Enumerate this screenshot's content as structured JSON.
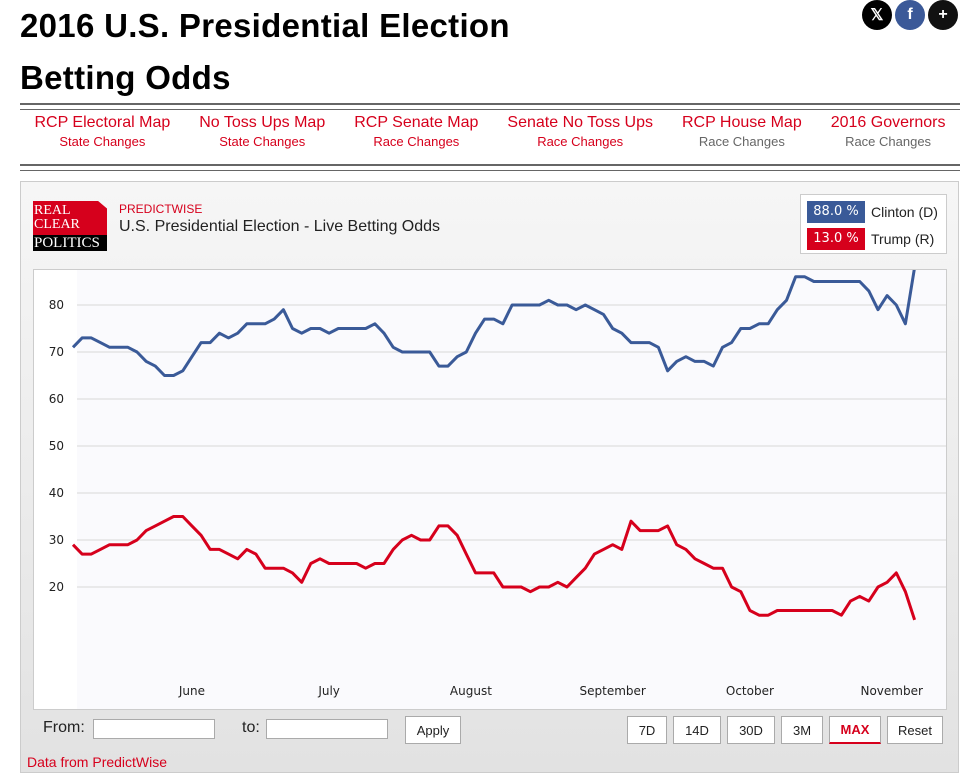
{
  "page": {
    "title_line1": "2016 U.S. Presidential Election",
    "title_line2": "Betting Odds",
    "social": [
      {
        "name": "x-icon",
        "glyph": "𝕏"
      },
      {
        "name": "facebook-icon",
        "glyph": "f"
      },
      {
        "name": "plus-icon",
        "glyph": "+"
      }
    ]
  },
  "nav": [
    {
      "main": "RCP Electoral Map",
      "sub": "State Changes",
      "sub_gray": false
    },
    {
      "main": "No Toss Ups Map",
      "sub": "State Changes",
      "sub_gray": false
    },
    {
      "main": "RCP Senate Map",
      "sub": "Race Changes",
      "sub_gray": false
    },
    {
      "main": "Senate No Toss Ups",
      "sub": "Race Changes",
      "sub_gray": false
    },
    {
      "main": "RCP House Map",
      "sub": "Race Changes",
      "sub_gray": true
    },
    {
      "main": "2016 Governors",
      "sub": "Race Changes",
      "sub_gray": true
    }
  ],
  "widget": {
    "logo": {
      "line1": "REAL",
      "line2": "CLEAR",
      "line3": "POLITICS"
    },
    "source_tag": "PREDICTWISE",
    "title": "U.S. Presidential Election - Live Betting Odds",
    "legend": [
      {
        "value": "88.0 %",
        "name": "Clinton (D)",
        "color": "#3a5a98"
      },
      {
        "value": "13.0 %",
        "name": "Trump (R)",
        "color": "#d6001c"
      }
    ],
    "controls": {
      "from_label": "From:",
      "to_label": "to:",
      "from_value": "",
      "to_value": "",
      "apply": "Apply",
      "ranges": [
        "7D",
        "14D",
        "30D",
        "3M",
        "MAX",
        "Reset"
      ],
      "active_range": "MAX"
    },
    "footer": "Data from PredictWise"
  },
  "chart_data": {
    "type": "line",
    "title": "U.S. Presidential Election - Live Betting Odds",
    "xlabel": "",
    "ylabel": "",
    "ylim": [
      0,
      90
    ],
    "xlim_day": [
      0,
      190
    ],
    "yticks": [
      20,
      30,
      40,
      50,
      60,
      70,
      80
    ],
    "x_tick_labels": [
      {
        "label": "June",
        "day": 26
      },
      {
        "label": "July",
        "day": 56
      },
      {
        "label": "August",
        "day": 87
      },
      {
        "label": "September",
        "day": 118
      },
      {
        "label": "October",
        "day": 148
      },
      {
        "label": "November",
        "day": 179
      }
    ],
    "grid": true,
    "legend": "top-right",
    "x_day": [
      0,
      2,
      4,
      6,
      8,
      10,
      12,
      14,
      16,
      18,
      20,
      22,
      24,
      26,
      28,
      30,
      32,
      34,
      36,
      38,
      40,
      42,
      44,
      46,
      48,
      50,
      52,
      54,
      56,
      58,
      60,
      62,
      64,
      66,
      68,
      70,
      72,
      74,
      76,
      78,
      80,
      82,
      84,
      86,
      88,
      90,
      92,
      94,
      96,
      98,
      100,
      102,
      104,
      106,
      108,
      110,
      112,
      114,
      116,
      118,
      120,
      122,
      124,
      126,
      128,
      130,
      132,
      134,
      136,
      138,
      140,
      142,
      144,
      146,
      148,
      150,
      152,
      154,
      156,
      158,
      160,
      162,
      164,
      166,
      168,
      170,
      172,
      174,
      176,
      178,
      180,
      182,
      184
    ],
    "series": [
      {
        "name": "Clinton (D)",
        "color": "#3a5a98",
        "values": [
          71,
          73,
          73,
          72,
          71,
          71,
          71,
          70,
          68,
          67,
          65,
          65,
          66,
          69,
          72,
          72,
          74,
          73,
          74,
          76,
          76,
          76,
          77,
          79,
          75,
          74,
          75,
          75,
          74,
          75,
          75,
          75,
          75,
          76,
          74,
          71,
          70,
          70,
          70,
          70,
          67,
          67,
          69,
          70,
          74,
          77,
          77,
          76,
          80,
          80,
          80,
          80,
          81,
          80,
          80,
          79,
          80,
          79,
          78,
          75,
          74,
          72,
          72,
          72,
          71,
          66,
          68,
          69,
          68,
          68,
          67,
          71,
          72,
          75,
          75,
          76,
          76,
          79,
          81,
          86,
          86,
          85,
          85,
          85,
          85,
          85,
          85,
          83,
          79,
          82,
          80,
          76,
          88
        ]
      },
      {
        "name": "Trump (R)",
        "color": "#d6001c",
        "values": [
          29,
          27,
          27,
          28,
          29,
          29,
          29,
          30,
          32,
          33,
          34,
          35,
          35,
          33,
          31,
          28,
          28,
          27,
          26,
          28,
          27,
          24,
          24,
          24,
          23,
          21,
          25,
          26,
          25,
          25,
          25,
          25,
          24,
          25,
          25,
          28,
          30,
          31,
          30,
          30,
          33,
          33,
          31,
          27,
          23,
          23,
          23,
          20,
          20,
          20,
          19,
          20,
          20,
          21,
          20,
          22,
          24,
          27,
          28,
          29,
          28,
          34,
          32,
          32,
          32,
          33,
          29,
          28,
          26,
          25,
          24,
          24,
          20,
          19,
          15,
          14,
          14,
          15,
          15,
          15,
          15,
          15,
          15,
          15,
          14,
          17,
          18,
          17,
          20,
          21,
          23,
          19,
          13
        ]
      }
    ]
  }
}
